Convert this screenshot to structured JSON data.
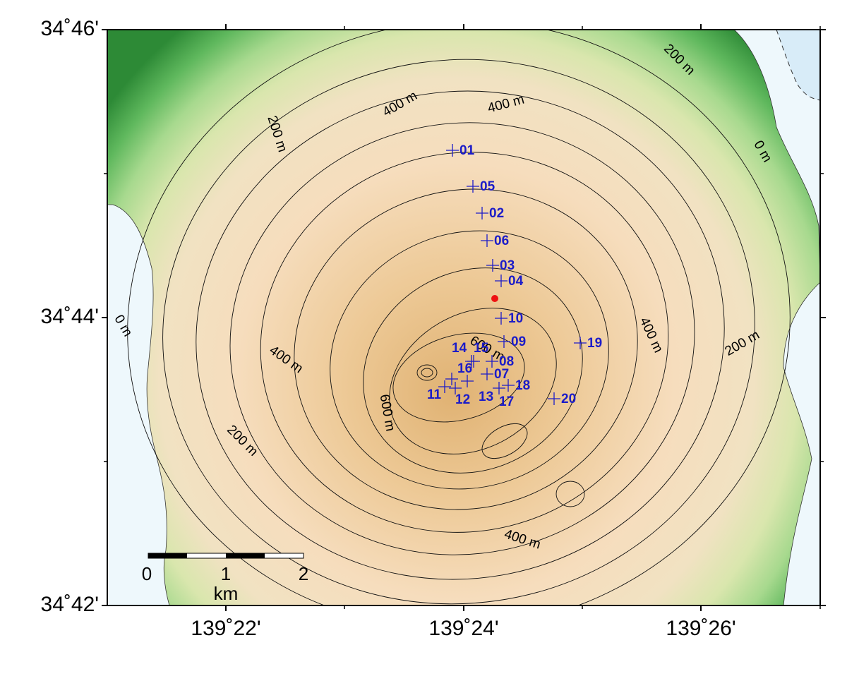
{
  "map": {
    "lat_ticks": [
      "34˚46'",
      "34˚44'",
      "34˚42'"
    ],
    "lon_ticks": [
      "139˚22'",
      "139˚24'",
      "139˚26'"
    ],
    "contour_labels": [
      "400 m",
      "400 m",
      "200 m",
      "200 m",
      "0 m",
      "0 m",
      "400 m",
      "600 m",
      "600 m",
      "200 m",
      "400 m",
      "400 m",
      "200 m"
    ],
    "stations": [
      "01",
      "05",
      "02",
      "06",
      "03",
      "04",
      "10",
      "09",
      "19",
      "14",
      "15",
      "08",
      "16",
      "07",
      "18",
      "11",
      "12",
      "13",
      "17",
      "20"
    ],
    "scale_bar": {
      "labels": [
        "0",
        "1",
        "2"
      ],
      "unit": "km"
    }
  }
}
